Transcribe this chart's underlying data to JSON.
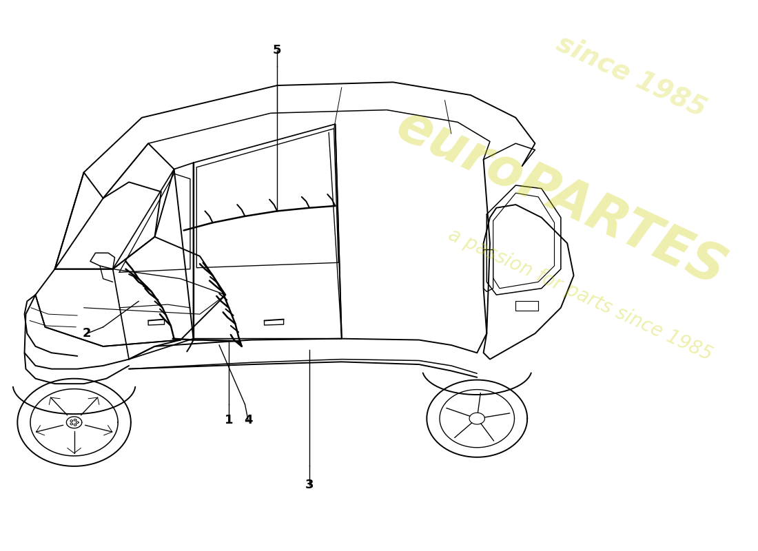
{
  "background_color": "#ffffff",
  "watermark_text1": "euroPARTES",
  "watermark_text2": "a passion for parts since 1985",
  "watermark_color": "#cccc00",
  "watermark_alpha": 0.32,
  "line_color": "#000000",
  "harness_color": "#000000",
  "car_lw": 1.4,
  "harness_lw": 1.8,
  "callout_lw": 1.0,
  "callout_fontsize": 13
}
